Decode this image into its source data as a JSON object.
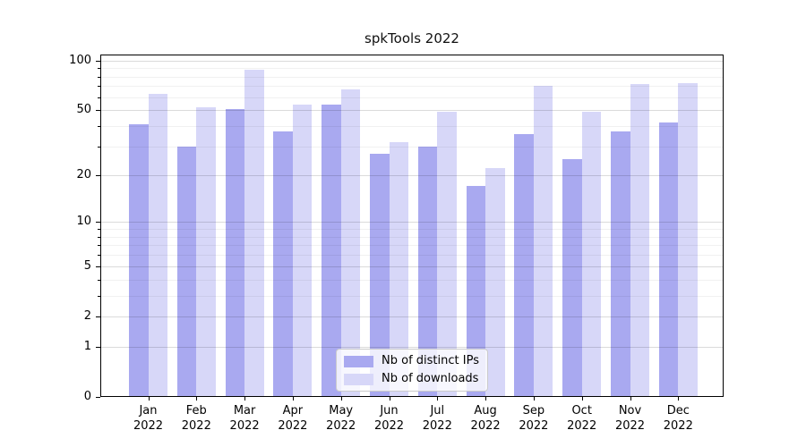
{
  "chart_data": {
    "type": "bar",
    "title": "spkTools 2022",
    "categories": [
      "Jan",
      "Feb",
      "Mar",
      "Apr",
      "May",
      "Jun",
      "Jul",
      "Aug",
      "Sep",
      "Oct",
      "Nov",
      "Dec"
    ],
    "x_tick_line2": "2022",
    "series": [
      {
        "name": "Nb of distinct IPs",
        "color": "#a9a9f0",
        "values": [
          41,
          30,
          51,
          37,
          54,
          27,
          30,
          17,
          36,
          25,
          37,
          42
        ]
      },
      {
        "name": "Nb of downloads",
        "color": "#d7d7f8",
        "values": [
          63,
          52,
          88,
          54,
          67,
          32,
          49,
          22,
          70,
          49,
          72,
          73
        ]
      }
    ],
    "y_scale": "log1p",
    "ylim": [
      0,
      108.5
    ],
    "y_ticks": [
      0,
      1,
      2,
      5,
      10,
      20,
      50,
      100
    ],
    "y_minor_gridlines": [
      3,
      4,
      6,
      7,
      8,
      9,
      30,
      40,
      60,
      70,
      80,
      90
    ],
    "grid": true,
    "legend": {
      "position": "lower center"
    }
  }
}
